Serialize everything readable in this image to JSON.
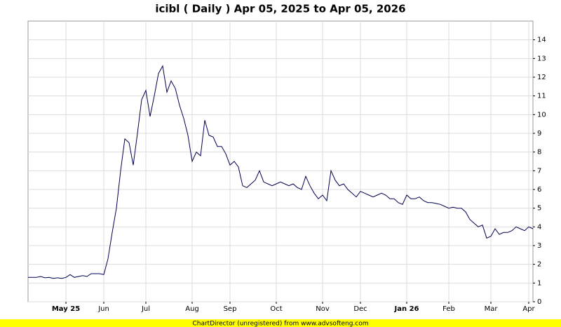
{
  "chart_data": {
    "type": "line",
    "title": "icibl ( Daily ) Apr 05, 2025 to Apr 05, 2026",
    "footer": "ChartDirector (unregistered) from www.advsofteng.com",
    "categories": [
      null,
      null,
      null,
      null,
      null,
      null,
      null,
      null,
      null,
      "May 25",
      null,
      null,
      null,
      null,
      null,
      null,
      null,
      null,
      "Jun",
      null,
      null,
      null,
      null,
      null,
      null,
      null,
      null,
      null,
      "Jul",
      null,
      null,
      null,
      null,
      null,
      null,
      null,
      null,
      null,
      null,
      "Aug",
      null,
      null,
      null,
      null,
      null,
      null,
      null,
      null,
      "Sep",
      null,
      null,
      null,
      null,
      null,
      null,
      null,
      null,
      null,
      null,
      "Oct",
      null,
      null,
      null,
      null,
      null,
      null,
      null,
      null,
      null,
      null,
      "Nov",
      null,
      null,
      null,
      null,
      null,
      null,
      null,
      null,
      "Dec",
      null,
      null,
      null,
      null,
      null,
      null,
      null,
      null,
      null,
      null,
      "Jan 26",
      null,
      null,
      null,
      null,
      null,
      null,
      null,
      null,
      null,
      "Feb",
      null,
      null,
      null,
      null,
      null,
      null,
      null,
      null,
      null,
      "Mar",
      null,
      null,
      null,
      null,
      null,
      null,
      null,
      null,
      "Apr",
      null
    ],
    "values": [
      1.3,
      1.3,
      1.3,
      1.35,
      1.28,
      1.3,
      1.25,
      1.28,
      1.25,
      1.3,
      1.45,
      1.3,
      1.35,
      1.4,
      1.35,
      1.5,
      1.5,
      1.5,
      1.45,
      2.3,
      3.7,
      5.0,
      7.0,
      8.7,
      8.5,
      7.3,
      9.0,
      10.8,
      11.3,
      9.9,
      11.0,
      12.2,
      12.6,
      11.2,
      11.8,
      11.4,
      10.5,
      9.8,
      8.9,
      7.5,
      8.0,
      7.8,
      9.7,
      8.9,
      8.8,
      8.3,
      8.3,
      7.9,
      7.3,
      7.5,
      7.2,
      6.2,
      6.1,
      6.3,
      6.5,
      7.0,
      6.4,
      6.3,
      6.2,
      6.3,
      6.4,
      6.3,
      6.2,
      6.3,
      6.1,
      6.0,
      6.7,
      6.2,
      5.8,
      5.5,
      5.7,
      5.4,
      7.0,
      6.5,
      6.2,
      6.3,
      6.0,
      5.8,
      5.6,
      5.9,
      5.8,
      5.7,
      5.6,
      5.7,
      5.8,
      5.7,
      5.5,
      5.5,
      5.3,
      5.2,
      5.7,
      5.5,
      5.5,
      5.6,
      5.4,
      5.3,
      5.3,
      5.25,
      5.2,
      5.1,
      5.0,
      5.05,
      5.0,
      5.0,
      4.8,
      4.4,
      4.2,
      4.0,
      4.1,
      3.4,
      3.5,
      3.9,
      3.6,
      3.7,
      3.7,
      3.8,
      4.0,
      3.9,
      3.8,
      4.0,
      3.9
    ],
    "color": "#000050",
    "ylim": [
      0,
      15
    ],
    "yticks": [
      0,
      1,
      2,
      3,
      4,
      5,
      6,
      7,
      8,
      9,
      10,
      11,
      12,
      13,
      14
    ],
    "grid": true
  }
}
